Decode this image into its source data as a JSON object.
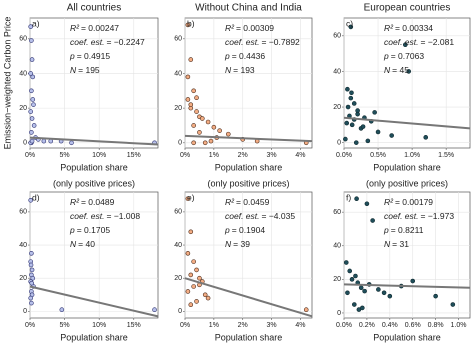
{
  "chart_data": [
    {
      "type": "scatter",
      "title": "All countries",
      "panel_label": "a)",
      "y_label": "Emission−weighted Carbon Price",
      "x_label": "Population share",
      "stats": [
        {
          "name": "R²",
          "value": "= 0.00247"
        },
        {
          "name": "coef. est.",
          "value": "= −0.2247"
        },
        {
          "name": "p",
          "value": "= 0.4915"
        },
        {
          "name": "N",
          "value": "= 195"
        }
      ],
      "color": "#b7c0ea",
      "edge": "#2b2f6e",
      "grid": true,
      "x": [
        0.001,
        0.002,
        0.003,
        0.001,
        0.004,
        0.002,
        0.005,
        0.001,
        0.003,
        0.006,
        0.002,
        0.008,
        0.012,
        0.02,
        0.03,
        0.045,
        0.06,
        0.18,
        0.002,
        0.001,
        0.003,
        0.004
      ],
      "y": [
        67,
        59,
        48,
        40,
        38,
        30,
        22,
        18,
        14,
        10,
        6,
        3,
        2,
        1,
        1,
        1,
        0,
        0,
        0,
        0,
        1,
        25
      ],
      "fit": {
        "x": [
          0,
          0.185
        ],
        "y": [
          3,
          -1
        ]
      },
      "xlim": [
        0,
        0.185
      ],
      "ylim": [
        -3,
        72
      ],
      "xticks": [
        {
          "value": 0,
          "label": "0%"
        },
        {
          "value": 0.05,
          "label": "5%"
        },
        {
          "value": 0.1,
          "label": "10%"
        },
        {
          "value": 0.15,
          "label": "15%"
        }
      ],
      "yticks": [
        0,
        20,
        40,
        60
      ]
    },
    {
      "type": "scatter",
      "title": "Without China and India",
      "panel_label": "b)",
      "x_label": "Population share",
      "stats": [
        {
          "name": "R²",
          "value": "= 0.00309"
        },
        {
          "name": "coef. est.",
          "value": "= −0.7892"
        },
        {
          "name": "p",
          "value": "= 0.4436"
        },
        {
          "name": "N",
          "value": "= 193"
        }
      ],
      "color": "#f3ad84",
      "edge": "#4a2a1a",
      "grid": true,
      "x": [
        0.001,
        0.002,
        0.003,
        0.001,
        0.002,
        0.004,
        0.005,
        0.006,
        0.008,
        0.003,
        0.01,
        0.012,
        0.015,
        0.02,
        0.025,
        0.003,
        0.007,
        0.009,
        0.004,
        0.002,
        0.042,
        0.001,
        0.005,
        0.011
      ],
      "y": [
        68,
        48,
        30,
        25,
        20,
        18,
        15,
        14,
        12,
        10,
        9,
        7,
        5,
        2,
        1,
        0,
        0,
        1,
        26,
        22,
        0,
        38,
        6,
        3
      ],
      "fit": {
        "x": [
          0,
          0.044
        ],
        "y": [
          4,
          1
        ]
      },
      "xlim": [
        0,
        0.044
      ],
      "ylim": [
        -3,
        72
      ],
      "xticks": [
        {
          "value": 0,
          "label": "0%"
        },
        {
          "value": 0.01,
          "label": "1%"
        },
        {
          "value": 0.02,
          "label": "2%"
        },
        {
          "value": 0.03,
          "label": "3%"
        },
        {
          "value": 0.04,
          "label": "4%"
        }
      ],
      "yticks": [
        0,
        20,
        40,
        60
      ]
    },
    {
      "type": "scatter",
      "title": "European countries",
      "panel_label": "c)",
      "x_label": "Population share",
      "stats": [
        {
          "name": "R²",
          "value": "= 0.00334"
        },
        {
          "name": "coef. est.",
          "value": "= −2.081"
        },
        {
          "name": "p",
          "value": "= 0.7063"
        },
        {
          "name": "N",
          "value": "= 45"
        }
      ],
      "color": "#1f4e5a",
      "edge": "#10282e",
      "grid": true,
      "x": [
        0.0005,
        0.001,
        0.0015,
        0.002,
        0.0008,
        0.003,
        0.004,
        0.0012,
        0.0025,
        0.005,
        0.007,
        0.009,
        0.0095,
        0.001,
        0.0002,
        0.0035,
        0.0018,
        0.002,
        0.0006,
        0.012,
        0.0004,
        0.0015,
        0.0028,
        0.0045,
        0.0011
      ],
      "y": [
        30,
        25,
        22,
        18,
        15,
        14,
        12,
        10,
        8,
        6,
        4,
        55,
        40,
        65,
        2,
        1,
        0,
        16,
        20,
        3,
        11,
        13,
        9,
        17,
        28
      ],
      "fit": {
        "x": [
          0,
          0.0185
        ],
        "y": [
          14,
          8
        ]
      },
      "xlim": [
        0,
        0.0185
      ],
      "ylim": [
        -3,
        70
      ],
      "xticks": [
        {
          "value": 0,
          "label": "0.0%"
        },
        {
          "value": 0.005,
          "label": "0.5%"
        },
        {
          "value": 0.01,
          "label": "1.0%"
        },
        {
          "value": 0.015,
          "label": "1.5%"
        }
      ],
      "yticks": [
        0,
        20,
        40,
        60
      ]
    },
    {
      "type": "scatter",
      "subtitle": "(only positive prices)",
      "panel_label": "d)",
      "x_label": "Population share",
      "stats": [
        {
          "name": "R²",
          "value": "= 0.0489"
        },
        {
          "name": "coef. est.",
          "value": "= −1.008"
        },
        {
          "name": "p",
          "value": "= 0.1705"
        },
        {
          "name": "N",
          "value": "= 40"
        }
      ],
      "color": "#b7c0ea",
      "edge": "#2b2f6e",
      "grid": true,
      "x": [
        0.001,
        0.002,
        0.001,
        0.003,
        0.002,
        0.004,
        0.001,
        0.005,
        0.002,
        0.003,
        0.001,
        0.002,
        0.046,
        0.18,
        0.0015,
        0.0025
      ],
      "y": [
        67,
        35,
        30,
        25,
        22,
        20,
        18,
        15,
        12,
        10,
        8,
        5,
        1,
        1,
        28,
        17
      ],
      "fit": {
        "x": [
          0,
          0.185
        ],
        "y": [
          15,
          -3
        ]
      },
      "xlim": [
        0,
        0.185
      ],
      "ylim": [
        -4,
        72
      ],
      "xticks": [
        {
          "value": 0,
          "label": "0%"
        },
        {
          "value": 0.05,
          "label": "5%"
        },
        {
          "value": 0.1,
          "label": "10%"
        },
        {
          "value": 0.15,
          "label": "15%"
        }
      ],
      "yticks": [
        0,
        20,
        40,
        60
      ]
    },
    {
      "type": "scatter",
      "subtitle": "(only positive prices)",
      "panel_label": "e)",
      "x_label": "Population share",
      "stats": [
        {
          "name": "R²",
          "value": "= 0.0459"
        },
        {
          "name": "coef. est.",
          "value": "= −4.035"
        },
        {
          "name": "p",
          "value": "= 0.1904"
        },
        {
          "name": "N",
          "value": "= 39"
        }
      ],
      "color": "#f3ad84",
      "edge": "#4a2a1a",
      "grid": true,
      "x": [
        0.001,
        0.002,
        0.003,
        0.004,
        0.002,
        0.005,
        0.006,
        0.003,
        0.001,
        0.007,
        0.008,
        0.004,
        0.002,
        0.042,
        0.001,
        0.005
      ],
      "y": [
        68,
        48,
        30,
        25,
        22,
        20,
        18,
        15,
        12,
        10,
        8,
        6,
        4,
        1,
        35,
        16
      ],
      "fit": {
        "x": [
          0,
          0.044
        ],
        "y": [
          20,
          -3
        ]
      },
      "xlim": [
        0,
        0.044
      ],
      "ylim": [
        -4,
        72
      ],
      "xticks": [
        {
          "value": 0,
          "label": "0%"
        },
        {
          "value": 0.01,
          "label": "1%"
        },
        {
          "value": 0.02,
          "label": "2%"
        },
        {
          "value": 0.03,
          "label": "3%"
        },
        {
          "value": 0.04,
          "label": "4%"
        }
      ],
      "yticks": [
        0,
        20,
        40,
        60
      ]
    },
    {
      "type": "scatter",
      "subtitle": "(only positive prices)",
      "panel_label": "f)",
      "x_label": "Population share",
      "stats": [
        {
          "name": "R²",
          "value": "= 0.00179"
        },
        {
          "name": "coef. est.",
          "value": "= −1.973"
        },
        {
          "name": "p",
          "value": "= 0.8211"
        },
        {
          "name": "N",
          "value": "= 31"
        }
      ],
      "color": "#1f4e5a",
      "edge": "#10282e",
      "grid": true,
      "x": [
        0.0002,
        0.0005,
        0.001,
        0.0012,
        0.0015,
        0.002,
        0.0025,
        0.003,
        0.0035,
        0.004,
        0.005,
        0.006,
        0.0007,
        0.0009,
        0.0013,
        0.0018,
        0.0022,
        0.008,
        0.0095,
        0.0003,
        0.0011,
        0.0016
      ],
      "y": [
        30,
        25,
        22,
        18,
        15,
        65,
        55,
        14,
        12,
        10,
        16,
        19,
        20,
        5,
        2,
        13,
        17,
        10,
        5,
        12,
        68,
        3
      ],
      "fit": {
        "x": [
          0,
          0.011
        ],
        "y": [
          17,
          15
        ]
      },
      "xlim": [
        0,
        0.011
      ],
      "ylim": [
        -3,
        72
      ],
      "xticks": [
        {
          "value": 0,
          "label": "0.0%"
        },
        {
          "value": 0.002,
          "label": "0.2%"
        },
        {
          "value": 0.004,
          "label": "0.4%"
        },
        {
          "value": 0.006,
          "label": "0.6%"
        },
        {
          "value": 0.008,
          "label": "0.8%"
        },
        {
          "value": 0.01,
          "label": "1.0%"
        }
      ],
      "yticks": [
        0,
        20,
        40,
        60
      ]
    }
  ]
}
